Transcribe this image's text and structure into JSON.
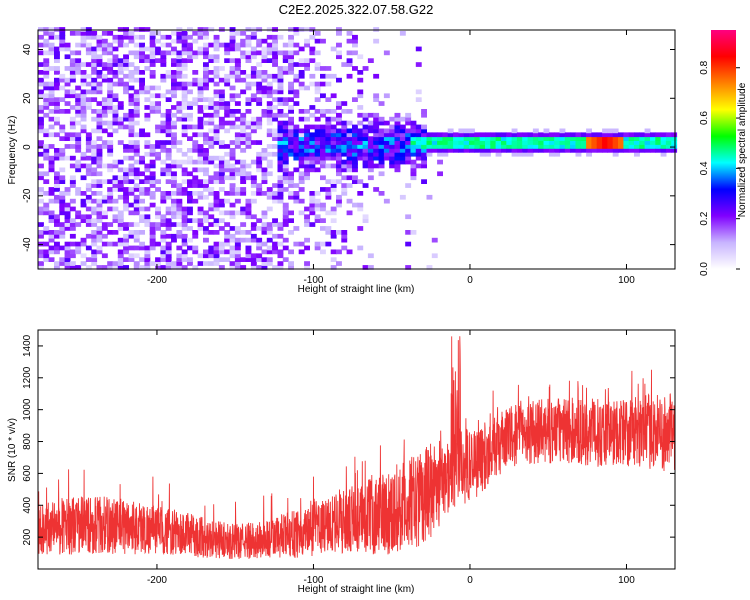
{
  "title": "C2E2.2025.322.07.58.G22",
  "chart_data": [
    {
      "type": "heatmap",
      "panel": "spectrogram",
      "xlabel": "Height of straight line (km)",
      "ylabel": "Frequency (Hz)",
      "xlim": [
        -276,
        131
      ],
      "ylim": [
        -50,
        48
      ],
      "xticks": [
        -200,
        -100,
        0,
        100
      ],
      "xtick_labels": [
        "-200",
        "-100",
        "0",
        "100"
      ],
      "yticks": [
        -40,
        -20,
        0,
        20,
        40
      ],
      "ytick_labels": [
        "-40",
        "-20",
        "0",
        "20",
        "40"
      ],
      "colorbar": {
        "label": "Normalized spectral amplitude",
        "range": [
          0,
          0.95
        ],
        "ticks": [
          0,
          0.2,
          0.4,
          0.6,
          0.8
        ],
        "tick_labels": [
          "0.0",
          "0.2",
          "0.4",
          "0.6",
          "0.8"
        ],
        "colors": [
          "#ffffff",
          "#c8b4ff",
          "#8000ff",
          "#0000ff",
          "#00ffff",
          "#00ff00",
          "#ffff00",
          "#ff8000",
          "#ff0000",
          "#ff0080"
        ]
      },
      "signal": {
        "noise_region_km": [
          -276,
          -50
        ],
        "signal_start_km": -125,
        "line_region_km": [
          -30,
          131
        ],
        "line_frequency_hz": 1,
        "peak_location_km": 85,
        "peak_amplitude": 0.85
      }
    },
    {
      "type": "line",
      "panel": "snr",
      "xlabel": "Height of straight line (km)",
      "ylabel": "SNR (10 * v/v)",
      "xlim": [
        -276,
        131
      ],
      "ylim": [
        0,
        1500
      ],
      "xticks": [
        -200,
        -100,
        0,
        100
      ],
      "xtick_labels": [
        "-200",
        "-100",
        "0",
        "100"
      ],
      "yticks": [
        200,
        400,
        600,
        800,
        1000,
        1200,
        1400
      ],
      "ytick_labels": [
        "200",
        "400",
        "600",
        "800",
        "1000",
        "1200",
        "1400"
      ],
      "color": "#ee3333",
      "envelope": {
        "x": [
          -276,
          -250,
          -220,
          -200,
          -170,
          -150,
          -130,
          -110,
          -90,
          -70,
          -50,
          -35,
          -25,
          -15,
          -5,
          5,
          15,
          25,
          40,
          60,
          80,
          100,
          120,
          131
        ],
        "lower": [
          90,
          90,
          90,
          90,
          70,
          60,
          60,
          70,
          90,
          90,
          90,
          120,
          200,
          300,
          400,
          450,
          550,
          640,
          660,
          660,
          640,
          640,
          620,
          600
        ],
        "upper": [
          420,
          470,
          450,
          400,
          330,
          280,
          310,
          380,
          460,
          540,
          640,
          720,
          800,
          850,
          900,
          900,
          950,
          1020,
          1060,
          1080,
          1070,
          1080,
          1100,
          1100
        ]
      }
    }
  ]
}
